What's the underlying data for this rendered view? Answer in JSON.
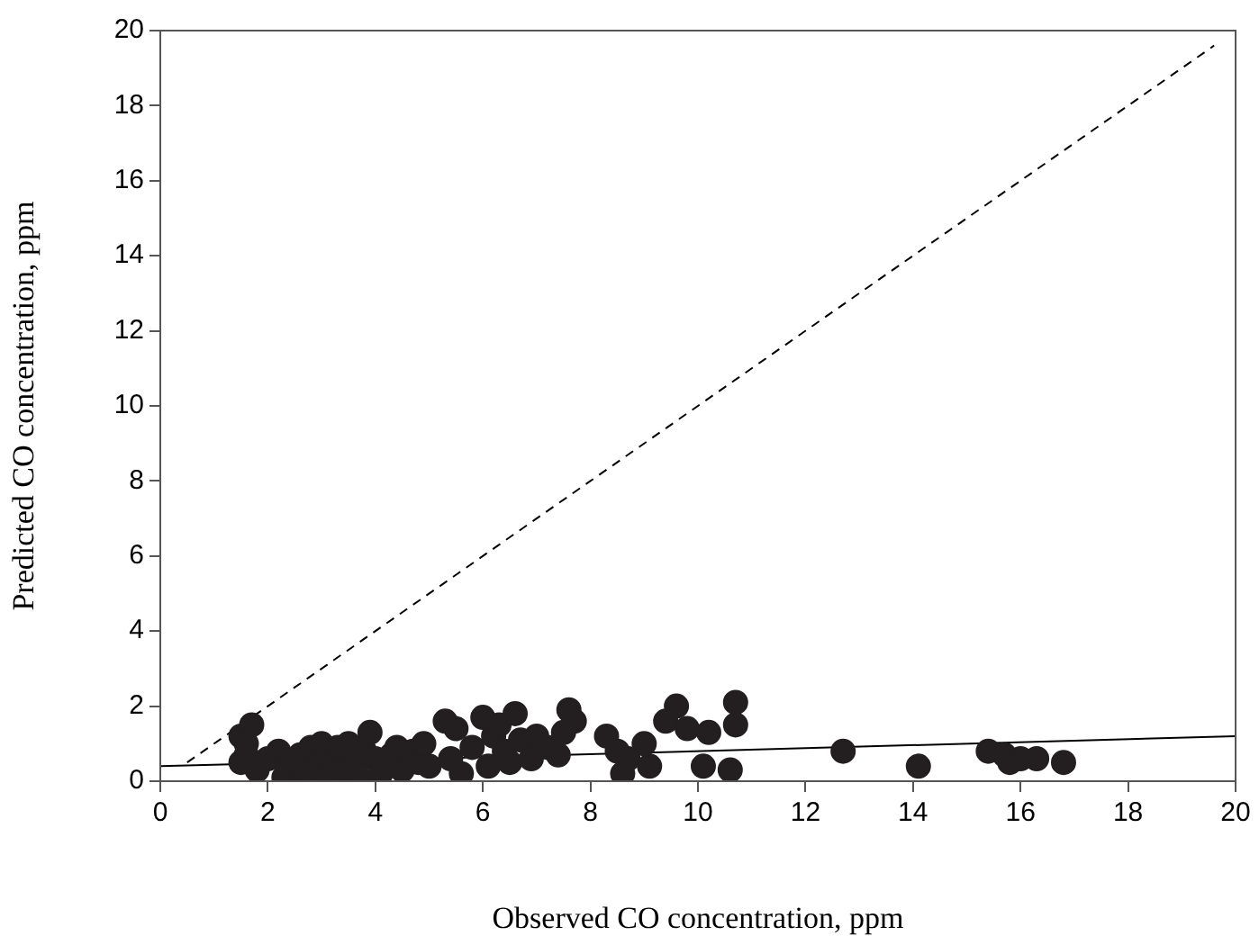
{
  "chart_data": {
    "type": "scatter",
    "xlabel": "Observed CO concentration, ppm",
    "ylabel": "Predicted CO concentration, ppm",
    "xlim": [
      0,
      20
    ],
    "ylim": [
      0,
      20
    ],
    "xticks": [
      0,
      2,
      4,
      6,
      8,
      10,
      12,
      14,
      16,
      18,
      20
    ],
    "yticks": [
      0,
      2,
      4,
      6,
      8,
      10,
      12,
      14,
      16,
      18,
      20
    ],
    "grid": false,
    "legend": false,
    "marker": "circle",
    "series": [
      {
        "color": "#231f20",
        "x": [
          1.5,
          1.6,
          1.7,
          1.5,
          1.6,
          1.8,
          2.0,
          2.2,
          2.3,
          2.4,
          2.6,
          2.7,
          2.8,
          2.9,
          3.0,
          3.1,
          3.2,
          3.3,
          3.4,
          3.5,
          3.6,
          3.7,
          3.8,
          3.9,
          4.0,
          4.1,
          4.3,
          4.4,
          4.5,
          4.7,
          4.8,
          4.9,
          5.0,
          5.3,
          5.4,
          5.5,
          5.6,
          5.8,
          6.0,
          6.1,
          6.2,
          6.3,
          6.4,
          6.5,
          6.6,
          6.7,
          6.9,
          7.0,
          7.2,
          7.4,
          7.6,
          7.7,
          7.5,
          8.3,
          8.5,
          8.6,
          8.7,
          9.0,
          9.1,
          9.4,
          9.6,
          9.8,
          10.1,
          10.2,
          10.6,
          10.7,
          10.7,
          12.7,
          14.1,
          15.4,
          15.7,
          15.8,
          16.0,
          16.3,
          16.8
        ],
        "values": [
          1.2,
          1.0,
          1.5,
          0.5,
          0.7,
          0.3,
          0.6,
          0.8,
          0.1,
          0.5,
          0.7,
          0.2,
          0.9,
          0.4,
          1.0,
          0.1,
          0.6,
          0.9,
          0.3,
          1.0,
          0.5,
          0.1,
          0.8,
          1.3,
          0.6,
          0.2,
          0.7,
          0.9,
          0.3,
          0.8,
          0.5,
          1.0,
          0.4,
          1.6,
          0.6,
          1.4,
          0.2,
          0.9,
          1.7,
          0.4,
          1.2,
          1.5,
          0.8,
          0.5,
          1.8,
          1.1,
          0.6,
          1.2,
          0.9,
          0.7,
          1.9,
          1.6,
          1.3,
          1.2,
          0.8,
          0.2,
          0.6,
          1.0,
          0.4,
          1.6,
          2.0,
          1.4,
          0.4,
          1.3,
          0.3,
          1.5,
          2.1,
          0.8,
          0.4,
          0.8,
          0.7,
          0.5,
          0.6,
          0.6,
          0.5
        ]
      },
      {
        "type": "line",
        "color": "#000000",
        "line_style": "dashed",
        "marker": "none",
        "x": [
          0.5,
          19.6
        ],
        "values": [
          0.5,
          19.6
        ]
      },
      {
        "type": "line",
        "color": "#000000",
        "line_style": "solid",
        "marker": "none",
        "x": [
          0,
          20
        ],
        "values": [
          0.4,
          1.2
        ]
      }
    ]
  }
}
